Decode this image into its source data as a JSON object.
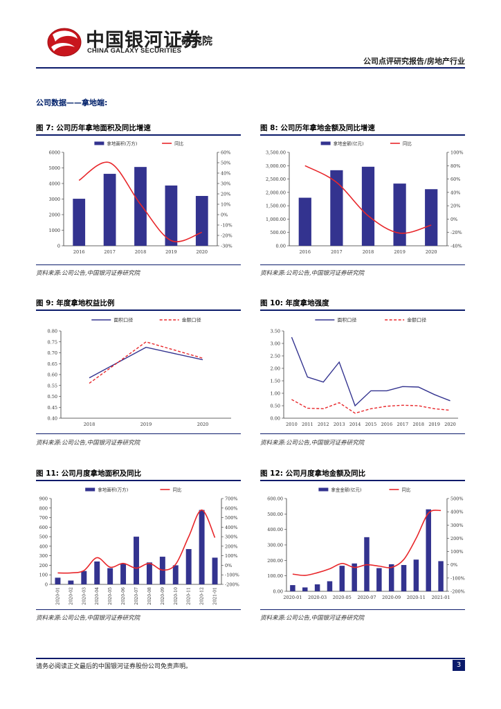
{
  "header": {
    "logo_cn": "中国银河证券",
    "logo_en": "CHINA GALAXY SECURITIES",
    "institute": "研究院",
    "report_type": "公司点评研究报告/房地产行业"
  },
  "section_title": "公司数据——拿地端:",
  "figures": [
    {
      "title": "图 7:  公司历年拿地面积及同比增速",
      "source": "资料来源:公司公告,中国银河证券研究院"
    },
    {
      "title": "图 8:  公司历年拿地金额及同比增速",
      "source": "资料来源:公司公告,中国银河证券研究院"
    },
    {
      "title": "图 9:  年度拿地权益比例",
      "source": "资料来源:公司公告,中国银河证券研究院"
    },
    {
      "title": "图 10:  年度拿地强度",
      "source": "资料来源:公司公告,中国银河证券研究院"
    },
    {
      "title": "图 11:  公司月度拿地面积及同比",
      "source": "资料来源:公司公告,中国银河证券研究院"
    },
    {
      "title": "图 12:  公司月度拿地金额及同比",
      "source": "资料来源:公司公告,中国银河证券研究院"
    }
  ],
  "footer": {
    "disclaimer": "请务必阅读正文最后的中国银河证券股份公司免责声明。",
    "page": "3"
  },
  "colors": {
    "bar": "#33338f",
    "line": "#e8262a",
    "navy": "#0a1a6a",
    "logo_red": "#c8161d"
  },
  "chart_data": [
    {
      "id": "c7",
      "type": "bar+line",
      "categories": [
        "2016",
        "2017",
        "2018",
        "2019",
        "2020"
      ],
      "series": [
        {
          "name": "拿地面积(万方)",
          "kind": "bar",
          "axis": "left",
          "values": [
            3020,
            4620,
            5060,
            3870,
            3200
          ]
        },
        {
          "name": "同比",
          "kind": "line",
          "axis": "right",
          "values": [
            33,
            50,
            10,
            -25,
            -17
          ]
        }
      ],
      "ylim": [
        0,
        6000
      ],
      "yticks": [
        0,
        1000,
        2000,
        3000,
        4000,
        5000,
        6000
      ],
      "ylim_right": [
        -30,
        60
      ],
      "yticks_right": [
        "-30%",
        "-20%",
        "-10%",
        "0%",
        "10%",
        "20%",
        "30%",
        "40%",
        "50%",
        "60%"
      ],
      "legend": [
        "拿地面积(万方)",
        "同比"
      ]
    },
    {
      "id": "c8",
      "type": "bar+line",
      "categories": [
        "2016",
        "2017",
        "2018",
        "2019",
        "2020"
      ],
      "series": [
        {
          "name": "拿地金额(亿元)",
          "kind": "bar",
          "axis": "left",
          "values": [
            1800,
            2830,
            2960,
            2330,
            2120
          ]
        },
        {
          "name": "同比",
          "kind": "line",
          "axis": "right",
          "values": [
            80,
            55,
            5,
            -21,
            -9
          ]
        }
      ],
      "ylim": [
        0,
        3500
      ],
      "yticks": [
        "0.00",
        "500.00",
        "1,000.00",
        "1,500.00",
        "2,000.00",
        "2,500.00",
        "3,000.00",
        "3,500.00"
      ],
      "ylim_right": [
        -40,
        100
      ],
      "yticks_right": [
        "-40%",
        "-20%",
        "0%",
        "20%",
        "40%",
        "60%",
        "80%",
        "100%"
      ],
      "legend": [
        "拿地金额(亿元)",
        "同比"
      ]
    },
    {
      "id": "c9",
      "type": "line",
      "categories": [
        "2018",
        "2019",
        "2020"
      ],
      "series": [
        {
          "name": "面积口径",
          "style": "solid",
          "color": "#33338f",
          "values": [
            0.585,
            0.725,
            0.668
          ]
        },
        {
          "name": "金额口径",
          "style": "dashed",
          "color": "#e8262a",
          "values": [
            0.56,
            0.75,
            0.675
          ]
        }
      ],
      "ylim": [
        0.4,
        0.8
      ],
      "yticks": [
        "0.40",
        "0.45",
        "0.50",
        "0.55",
        "0.60",
        "0.65",
        "0.70",
        "0.75",
        "0.80"
      ],
      "legend": [
        "面积口径",
        "金额口径"
      ]
    },
    {
      "id": "c10",
      "type": "line",
      "categories": [
        "2010",
        "2011",
        "2012",
        "2013",
        "2014",
        "2015",
        "2016",
        "2017",
        "2018",
        "2019",
        "2020"
      ],
      "series": [
        {
          "name": "面积口径",
          "style": "solid",
          "color": "#33338f",
          "values": [
            3.25,
            1.65,
            1.45,
            2.25,
            0.5,
            1.1,
            1.1,
            1.27,
            1.25,
            0.95,
            0.7
          ]
        },
        {
          "name": "金额口径",
          "style": "dashed",
          "color": "#e8262a",
          "values": [
            0.75,
            0.4,
            0.38,
            0.62,
            0.2,
            0.38,
            0.48,
            0.52,
            0.5,
            0.38,
            0.32
          ]
        }
      ],
      "ylim": [
        0,
        3.5
      ],
      "yticks": [
        "0.00",
        "0.50",
        "1.00",
        "1.50",
        "2.00",
        "2.50",
        "3.00",
        "3.50"
      ],
      "legend": [
        "面积口径",
        "金额口径"
      ]
    },
    {
      "id": "c11",
      "type": "bar+line",
      "categories": [
        "2020-01",
        "2020-02",
        "2020-03",
        "2020-04",
        "2020-05",
        "2020-06",
        "2020-07",
        "2020-08",
        "2020-09",
        "2020-10",
        "2020-11",
        "2020-12",
        "2021-01"
      ],
      "series": [
        {
          "name": "拿地面积(万方)",
          "kind": "bar",
          "axis": "left",
          "values": [
            70,
            40,
            140,
            240,
            170,
            220,
            500,
            230,
            290,
            200,
            370,
            780,
            280
          ]
        },
        {
          "name": "同比",
          "kind": "line",
          "axis": "right",
          "values": [
            -80,
            -80,
            -55,
            80,
            -20,
            20,
            -30,
            20,
            -50,
            10,
            300,
            580,
            290
          ]
        }
      ],
      "ylim": [
        0,
        900
      ],
      "yticks": [
        0,
        100,
        200,
        300,
        400,
        500,
        600,
        700,
        800,
        900
      ],
      "ylim_right": [
        -200,
        700
      ],
      "yticks_right": [
        "-200%",
        "-100%",
        "0%",
        "100%",
        "200%",
        "300%",
        "400%",
        "500%",
        "600%",
        "700%"
      ],
      "legend": [
        "拿地面积(万方)",
        "同比"
      ]
    },
    {
      "id": "c12",
      "type": "bar+line",
      "categories": [
        "2020-01",
        "2020-02",
        "2020-03",
        "2020-04",
        "2020-05",
        "2020-06",
        "2020-07",
        "2020-08",
        "2020-09",
        "2020-10",
        "2020-11",
        "2020-12",
        "2021-01"
      ],
      "tick_labels": [
        "2020-01",
        "2020-03",
        "2020-05",
        "2020-07",
        "2020-09",
        "2020-11",
        "2021-01"
      ],
      "series": [
        {
          "name": "拿金金额(亿元)",
          "kind": "bar",
          "axis": "left",
          "values": [
            40,
            25,
            45,
            65,
            165,
            180,
            350,
            150,
            175,
            170,
            205,
            530,
            195
          ]
        },
        {
          "name": "同比",
          "kind": "line",
          "axis": "right",
          "values": [
            -70,
            -80,
            -60,
            -30,
            10,
            -20,
            0,
            -10,
            -20,
            40,
            200,
            390,
            410
          ]
        }
      ],
      "ylim": [
        0,
        600
      ],
      "yticks": [
        "0.00",
        "100.00",
        "200.00",
        "300.00",
        "400.00",
        "500.00",
        "600.00"
      ],
      "ylim_right": [
        -200,
        500
      ],
      "yticks_right": [
        "-200%",
        "-100%",
        "0%",
        "100%",
        "200%",
        "300%",
        "400%",
        "500%"
      ],
      "legend": [
        "拿金金额(亿元)",
        "同比"
      ]
    }
  ]
}
